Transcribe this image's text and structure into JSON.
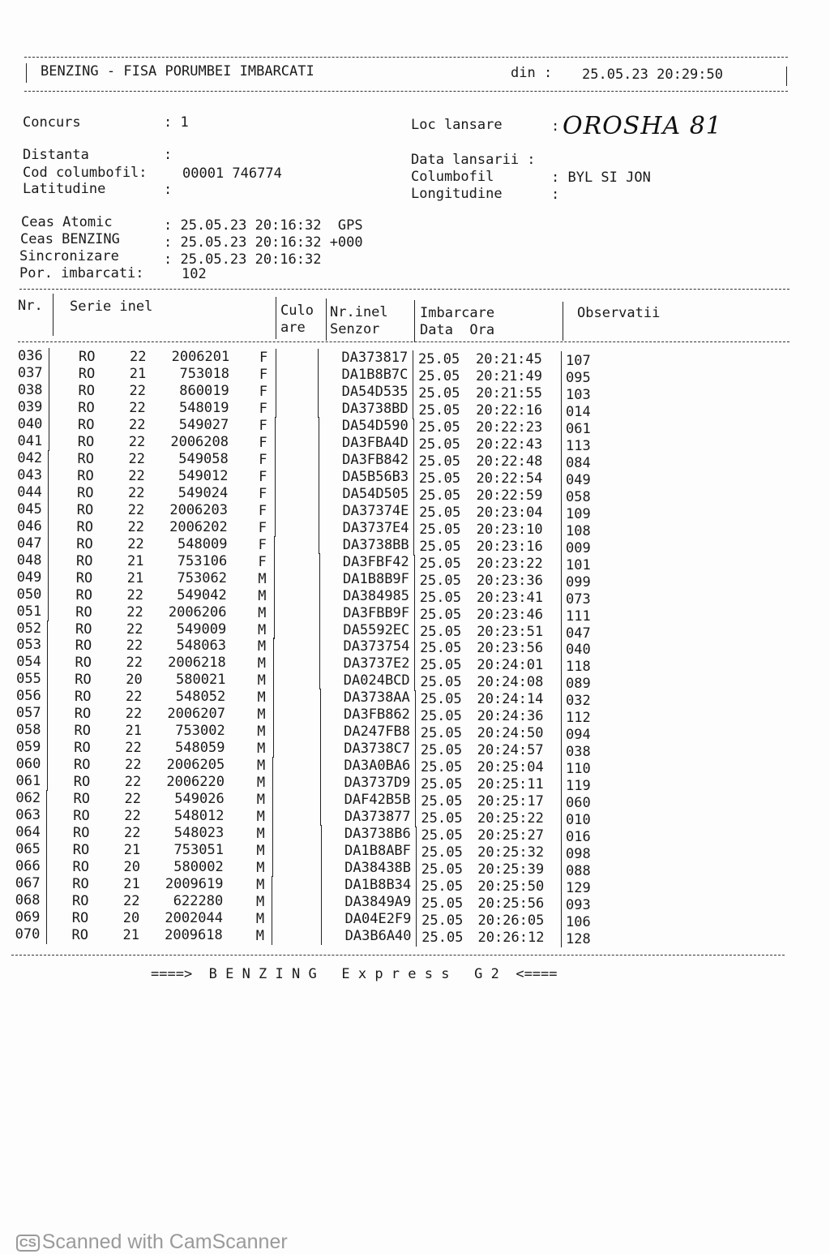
{
  "header": {
    "title": "BENZING - FISA PORUMBEI IMBARCATI",
    "din_label": "din :",
    "din_value": "25.05.23 20:29:50"
  },
  "info": {
    "concurs_label": "Concurs",
    "concurs_value": ": 1",
    "distanta_label": "Distanta",
    "distanta_value": ":",
    "cod_label": "Cod columbofil:",
    "cod_value": "00001 746774",
    "latitudine_label": "Latitudine",
    "latitudine_value": ":",
    "loc_label": "Loc lansare",
    "loc_value": "OROSHA 81",
    "data_lansarii_label": "Data lansarii :",
    "columbofil_label": "Columbofil",
    "columbofil_value": ": BYL SI JON",
    "longitudine_label": "Longitudine",
    "longitudine_value": ":",
    "ceas_atomic_label": "Ceas Atomic",
    "ceas_atomic_value": ": 25.05.23 20:16:32  GPS",
    "ceas_benzing_label": "Ceas BENZING",
    "ceas_benzing_value": ": 25.05.23 20:16:32 +000",
    "sincronizare_label": "Sincronizare",
    "sincronizare_value": ": 25.05.23 20:16:32",
    "por_label": "Por. imbarcati:",
    "por_value": "102"
  },
  "table": {
    "headers": {
      "nr": "Nr.",
      "serie": "Serie inel",
      "culo1": "Culo",
      "culo2": "are",
      "nrinel1": "Nr.inel",
      "nrinel2": "Senzor",
      "imb1": "Imbarcare",
      "imb2": "Data  Ora",
      "obs": "Observatii"
    },
    "rows": [
      [
        "036",
        "RO",
        "22",
        "2006201",
        "F",
        "DA373817",
        "25.05",
        "20:21:45",
        "107"
      ],
      [
        "037",
        "RO",
        "21",
        "753018",
        "F",
        "DA1B8B7C",
        "25.05",
        "20:21:49",
        "095"
      ],
      [
        "038",
        "RO",
        "22",
        "860019",
        "F",
        "DA54D535",
        "25.05",
        "20:21:55",
        "103"
      ],
      [
        "039",
        "RO",
        "22",
        "548019",
        "F",
        "DA3738BD",
        "25.05",
        "20:22:16",
        "014"
      ],
      [
        "040",
        "RO",
        "22",
        "549027",
        "F",
        "DA54D590",
        "25.05",
        "20:22:23",
        "061"
      ],
      [
        "041",
        "RO",
        "22",
        "2006208",
        "F",
        "DA3FBA4D",
        "25.05",
        "20:22:43",
        "113"
      ],
      [
        "042",
        "RO",
        "22",
        "549058",
        "F",
        "DA3FB842",
        "25.05",
        "20:22:48",
        "084"
      ],
      [
        "043",
        "RO",
        "22",
        "549012",
        "F",
        "DA5B56B3",
        "25.05",
        "20:22:54",
        "049"
      ],
      [
        "044",
        "RO",
        "22",
        "549024",
        "F",
        "DA54D505",
        "25.05",
        "20:22:59",
        "058"
      ],
      [
        "045",
        "RO",
        "22",
        "2006203",
        "F",
        "DA37374E",
        "25.05",
        "20:23:04",
        "109"
      ],
      [
        "046",
        "RO",
        "22",
        "2006202",
        "F",
        "DA3737E4",
        "25.05",
        "20:23:10",
        "108"
      ],
      [
        "047",
        "RO",
        "22",
        "548009",
        "F",
        "DA3738BB",
        "25.05",
        "20:23:16",
        "009"
      ],
      [
        "048",
        "RO",
        "21",
        "753106",
        "F",
        "DA3FBF42",
        "25.05",
        "20:23:22",
        "101"
      ],
      [
        "049",
        "RO",
        "21",
        "753062",
        "M",
        "DA1B8B9F",
        "25.05",
        "20:23:36",
        "099"
      ],
      [
        "050",
        "RO",
        "22",
        "549042",
        "M",
        "DA384985",
        "25.05",
        "20:23:41",
        "073"
      ],
      [
        "051",
        "RO",
        "22",
        "2006206",
        "M",
        "DA3FBB9F",
        "25.05",
        "20:23:46",
        "111"
      ],
      [
        "052",
        "RO",
        "22",
        "549009",
        "M",
        "DA5592EC",
        "25.05",
        "20:23:51",
        "047"
      ],
      [
        "053",
        "RO",
        "22",
        "548063",
        "M",
        "DA373754",
        "25.05",
        "20:23:56",
        "040"
      ],
      [
        "054",
        "RO",
        "22",
        "2006218",
        "M",
        "DA3737E2",
        "25.05",
        "20:24:01",
        "118"
      ],
      [
        "055",
        "RO",
        "20",
        "580021",
        "M",
        "DA024BCD",
        "25.05",
        "20:24:08",
        "089"
      ],
      [
        "056",
        "RO",
        "22",
        "548052",
        "M",
        "DA3738AA",
        "25.05",
        "20:24:14",
        "032"
      ],
      [
        "057",
        "RO",
        "22",
        "2006207",
        "M",
        "DA3FB862",
        "25.05",
        "20:24:36",
        "112"
      ],
      [
        "058",
        "RO",
        "21",
        "753002",
        "M",
        "DA247FB8",
        "25.05",
        "20:24:50",
        "094"
      ],
      [
        "059",
        "RO",
        "22",
        "548059",
        "M",
        "DA3738C7",
        "25.05",
        "20:24:57",
        "038"
      ],
      [
        "060",
        "RO",
        "22",
        "2006205",
        "M",
        "DA3A0BA6",
        "25.05",
        "20:25:04",
        "110"
      ],
      [
        "061",
        "RO",
        "22",
        "2006220",
        "M",
        "DA3737D9",
        "25.05",
        "20:25:11",
        "119"
      ],
      [
        "062",
        "RO",
        "22",
        "549026",
        "M",
        "DAF42B5B",
        "25.05",
        "20:25:17",
        "060"
      ],
      [
        "063",
        "RO",
        "22",
        "548012",
        "M",
        "DA373877",
        "25.05",
        "20:25:22",
        "010"
      ],
      [
        "064",
        "RO",
        "22",
        "548023",
        "M",
        "DA3738B6",
        "25.05",
        "20:25:27",
        "016"
      ],
      [
        "065",
        "RO",
        "21",
        "753051",
        "M",
        "DA1B8ABF",
        "25.05",
        "20:25:32",
        "098"
      ],
      [
        "066",
        "RO",
        "20",
        "580002",
        "M",
        "DA38438B",
        "25.05",
        "20:25:39",
        "088"
      ],
      [
        "067",
        "RO",
        "21",
        "2009619",
        "M",
        "DA1B8B34",
        "25.05",
        "20:25:50",
        "129"
      ],
      [
        "068",
        "RO",
        "22",
        "622280",
        "M",
        "DA3849A9",
        "25.05",
        "20:25:56",
        "093"
      ],
      [
        "069",
        "RO",
        "20",
        "2002044",
        "M",
        "DA04E2F9",
        "25.05",
        "20:26:05",
        "106"
      ],
      [
        "070",
        "RO",
        "21",
        "2009618",
        "M",
        "DA3B6A40",
        "25.05",
        "20:26:12",
        "128"
      ]
    ]
  },
  "footer": {
    "text": "====>  B E N Z I N G   E x p r e s s   G 2  <===="
  },
  "watermark": {
    "logo": "CS",
    "text": "Scanned with CamScanner"
  }
}
